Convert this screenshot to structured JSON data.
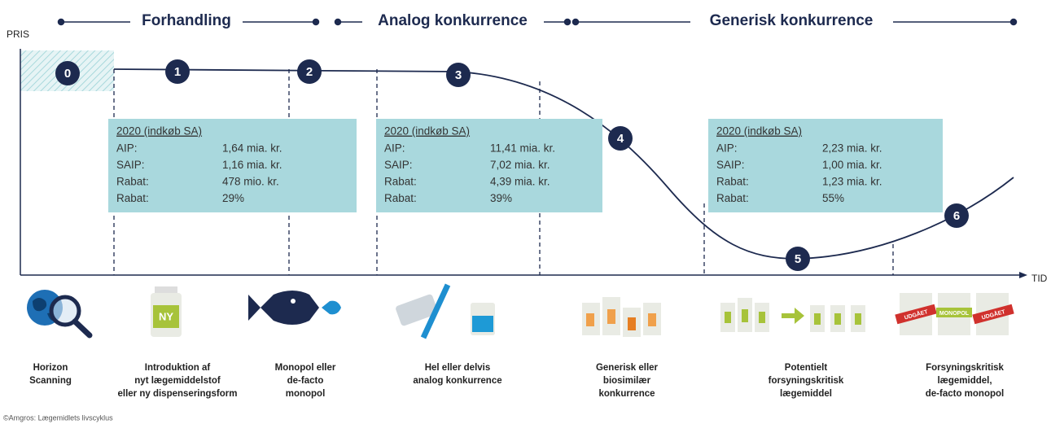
{
  "phases": [
    "Forhandling",
    "Analog konkurrence",
    "Generisk konkurrence"
  ],
  "axis": {
    "y_label": "PRIS",
    "x_label": "TID"
  },
  "markers": [
    "0",
    "1",
    "2",
    "3",
    "4",
    "5",
    "6"
  ],
  "boxes": [
    {
      "title": "2020 (indkøb SA)",
      "rows": [
        [
          "AIP:",
          "1,64 mia. kr."
        ],
        [
          "SAIP:",
          "1,16 mia. kr."
        ],
        [
          "Rabat:",
          "478  mio. kr."
        ],
        [
          "Rabat:",
          "29%"
        ]
      ]
    },
    {
      "title": "2020 (indkøb SA)",
      "rows": [
        [
          "AIP:",
          "11,41 mia. kr."
        ],
        [
          "SAIP:",
          "7,02 mia. kr."
        ],
        [
          "Rabat:",
          "4,39 mia. kr."
        ],
        [
          "Rabat:",
          "39%"
        ]
      ]
    },
    {
      "title": "2020 (indkøb SA)",
      "rows": [
        [
          "AIP:",
          "2,23 mia. kr."
        ],
        [
          "SAIP:",
          "1,00 mia. kr."
        ],
        [
          "Rabat:",
          "1,23 mia. kr."
        ],
        [
          "Rabat:",
          "55%"
        ]
      ]
    }
  ],
  "icon_labels": {
    "new": "NY",
    "monopoly": "MONOPOL",
    "discontinued": "UDGÅET"
  },
  "stages": [
    [
      "Horizon",
      "Scanning"
    ],
    [
      "Introduktion af",
      "nyt lægemiddelstof",
      "eller ny dispenseringsform"
    ],
    [
      "Monopol eller",
      "de-facto",
      "monopol"
    ],
    [
      "Hel eller delvis",
      "analog konkurrence"
    ],
    [
      "Generisk eller",
      "biosimilær",
      "konkurrence"
    ],
    [
      "Potentielt",
      "forsyningskritisk",
      "lægemiddel"
    ],
    [
      "Forsyningskritisk",
      "lægemiddel,",
      "de-facto monopol"
    ]
  ],
  "footer": "©Amgros: Lægemidlets livscyklus"
}
